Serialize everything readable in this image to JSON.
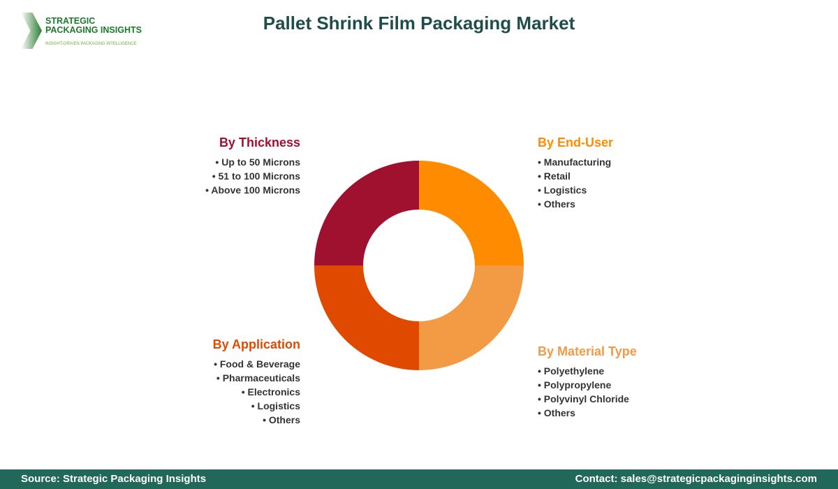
{
  "logo": {
    "name_line1": "STRATEGIC",
    "name_line2": "PACKAGING INSIGHTS",
    "tagline": "INSIGHT-DRIVEN PACKAGING INTELLIGENCE"
  },
  "title": "Pallet Shrink Film Packaging Market",
  "segments": [
    {
      "heading": "By End-User",
      "color": "#FF8C00",
      "items": [
        "Manufacturing",
        "Retail",
        "Logistics",
        "Others"
      ]
    },
    {
      "heading": "By Material Type",
      "color": "#F39A45",
      "items": [
        "Polyethylene",
        "Polypropylene",
        "Polyvinyl Chloride",
        "Others"
      ]
    },
    {
      "heading": "By Application",
      "color": "#E04A00",
      "items": [
        "Food & Beverage",
        "Pharmaceuticals",
        "Electronics",
        "Logistics",
        "Others"
      ]
    },
    {
      "heading": "By Thickness",
      "color": "#A0102F",
      "items": [
        "Up to 50 Microns",
        "51 to 100 Microns",
        "Above 100 Microns"
      ]
    }
  ],
  "footer": {
    "source": "Source: Strategic Packaging Insights",
    "contact": "Contact: sales@strategicpackaginginsights.com"
  }
}
